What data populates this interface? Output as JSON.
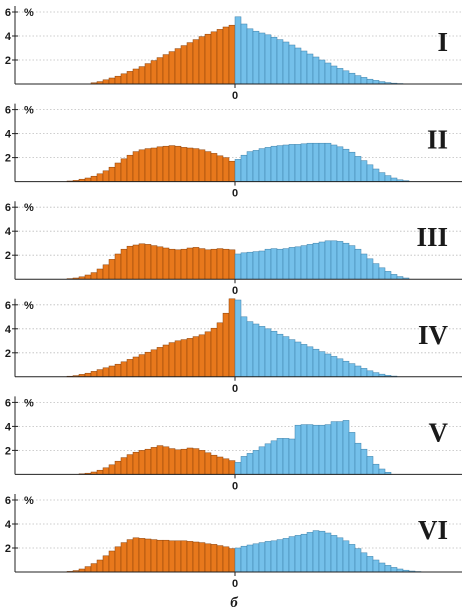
{
  "colors": {
    "left": "#e8781c",
    "right": "#74c0ea"
  },
  "figure_label": "б",
  "chart_data": [
    {
      "type": "bar",
      "title": "I",
      "y_unit": "%",
      "ylim": [
        0,
        6
      ],
      "y_ticks": [
        "2",
        "4",
        "6"
      ],
      "zero_label": "0",
      "grid": true,
      "left": [
        0,
        0,
        0,
        0,
        0,
        0,
        0,
        0,
        0,
        0,
        0.1,
        0.2,
        0.35,
        0.5,
        0.65,
        0.85,
        1.05,
        1.25,
        1.45,
        1.7,
        1.95,
        2.2,
        2.45,
        2.7,
        2.95,
        3.2,
        3.45,
        3.7,
        3.95,
        4.15,
        4.35,
        4.55,
        4.75,
        4.9
      ],
      "right": [
        5.6,
        5.0,
        4.6,
        4.4,
        4.25,
        4.1,
        3.9,
        3.7,
        3.5,
        3.25,
        3.0,
        2.75,
        2.5,
        2.25,
        2.0,
        1.75,
        1.5,
        1.3,
        1.1,
        0.9,
        0.7,
        0.55,
        0.4,
        0.3,
        0.2,
        0.12,
        0.07,
        0.04,
        0,
        0,
        0,
        0,
        0,
        0
      ]
    },
    {
      "type": "bar",
      "title": "II",
      "y_unit": "%",
      "ylim": [
        0,
        6
      ],
      "y_ticks": [
        "2",
        "4",
        "6"
      ],
      "zero_label": "0",
      "grid": true,
      "left": [
        0,
        0,
        0,
        0,
        0,
        0,
        0.05,
        0.1,
        0.2,
        0.3,
        0.45,
        0.65,
        0.9,
        1.2,
        1.55,
        1.9,
        2.2,
        2.5,
        2.65,
        2.75,
        2.8,
        2.9,
        2.95,
        3.0,
        2.95,
        2.85,
        2.8,
        2.75,
        2.65,
        2.5,
        2.35,
        2.15,
        2.0,
        1.7
      ],
      "right": [
        1.85,
        2.2,
        2.5,
        2.6,
        2.75,
        2.85,
        2.95,
        3.0,
        3.05,
        3.1,
        3.1,
        3.15,
        3.2,
        3.2,
        3.2,
        3.2,
        3.05,
        2.9,
        2.7,
        2.45,
        2.1,
        1.75,
        1.4,
        1.05,
        0.75,
        0.5,
        0.3,
        0.15,
        0.08,
        0,
        0,
        0,
        0,
        0
      ]
    },
    {
      "type": "bar",
      "title": "III",
      "y_unit": "%",
      "ylim": [
        0,
        6
      ],
      "y_ticks": [
        "2",
        "4",
        "6"
      ],
      "zero_label": "0",
      "grid": true,
      "left": [
        0,
        0,
        0,
        0,
        0,
        0,
        0.05,
        0.1,
        0.2,
        0.35,
        0.55,
        0.85,
        1.2,
        1.65,
        2.1,
        2.5,
        2.75,
        2.85,
        2.95,
        2.9,
        2.8,
        2.7,
        2.6,
        2.5,
        2.45,
        2.5,
        2.6,
        2.65,
        2.55,
        2.45,
        2.5,
        2.55,
        2.5,
        2.45
      ],
      "right": [
        2.1,
        2.2,
        2.25,
        2.3,
        2.35,
        2.5,
        2.55,
        2.5,
        2.55,
        2.65,
        2.7,
        2.8,
        2.9,
        3.0,
        3.1,
        3.2,
        3.2,
        3.15,
        3.0,
        2.8,
        2.5,
        2.1,
        1.7,
        1.3,
        0.95,
        0.65,
        0.4,
        0.22,
        0.1,
        0,
        0,
        0,
        0,
        0
      ]
    },
    {
      "type": "bar",
      "title": "IV",
      "y_unit": "%",
      "ylim": [
        0,
        6
      ],
      "y_ticks": [
        "2",
        "4",
        "6"
      ],
      "zero_label": "0",
      "grid": true,
      "left": [
        0,
        0,
        0,
        0,
        0,
        0,
        0.05,
        0.1,
        0.2,
        0.3,
        0.45,
        0.6,
        0.75,
        0.9,
        1.05,
        1.25,
        1.45,
        1.65,
        1.85,
        2.05,
        2.25,
        2.45,
        2.65,
        2.85,
        3.0,
        3.1,
        3.2,
        3.35,
        3.5,
        3.75,
        4.05,
        4.5,
        5.3,
        6.5
      ],
      "right": [
        6.4,
        5.0,
        4.6,
        4.4,
        4.2,
        4.0,
        3.8,
        3.55,
        3.35,
        3.1,
        2.9,
        2.7,
        2.5,
        2.3,
        2.1,
        1.9,
        1.7,
        1.5,
        1.3,
        1.1,
        0.9,
        0.7,
        0.5,
        0.35,
        0.22,
        0.12,
        0.06,
        0,
        0,
        0,
        0,
        0,
        0,
        0
      ]
    },
    {
      "type": "bar",
      "title": "V",
      "y_unit": "%",
      "ylim": [
        0,
        6
      ],
      "y_ticks": [
        "2",
        "4",
        "6"
      ],
      "zero_label": "0",
      "grid": true,
      "left": [
        0,
        0,
        0,
        0,
        0,
        0,
        0,
        0,
        0.05,
        0.1,
        0.2,
        0.35,
        0.55,
        0.8,
        1.1,
        1.4,
        1.65,
        1.85,
        2.0,
        2.1,
        2.25,
        2.4,
        2.3,
        2.15,
        2.05,
        2.1,
        2.2,
        2.15,
        2.0,
        1.8,
        1.6,
        1.45,
        1.3,
        1.15
      ],
      "right": [
        1.0,
        1.5,
        1.75,
        2.0,
        2.3,
        2.55,
        2.8,
        3.0,
        3.0,
        2.95,
        4.1,
        4.15,
        4.15,
        4.1,
        4.1,
        4.15,
        4.4,
        4.4,
        4.5,
        3.5,
        2.6,
        2.1,
        1.5,
        0.85,
        0.45,
        0.18,
        0,
        0,
        0,
        0,
        0,
        0,
        0,
        0
      ]
    },
    {
      "type": "bar",
      "title": "VI",
      "y_unit": "%",
      "ylim": [
        0,
        6
      ],
      "y_ticks": [
        "2",
        "4",
        "6"
      ],
      "zero_label": "0",
      "grid": true,
      "left": [
        0,
        0,
        0,
        0,
        0,
        0,
        0.05,
        0.12,
        0.25,
        0.45,
        0.7,
        1.0,
        1.35,
        1.75,
        2.1,
        2.45,
        2.7,
        2.85,
        2.8,
        2.75,
        2.7,
        2.65,
        2.65,
        2.6,
        2.6,
        2.6,
        2.55,
        2.5,
        2.45,
        2.35,
        2.3,
        2.2,
        2.1,
        1.95
      ],
      "right": [
        2.0,
        2.15,
        2.25,
        2.35,
        2.45,
        2.55,
        2.6,
        2.7,
        2.8,
        2.95,
        3.05,
        3.15,
        3.3,
        3.45,
        3.4,
        3.25,
        3.05,
        2.85,
        2.6,
        2.3,
        1.95,
        1.6,
        1.3,
        1.0,
        0.75,
        0.55,
        0.38,
        0.25,
        0.15,
        0.08,
        0.04,
        0,
        0,
        0
      ]
    }
  ]
}
